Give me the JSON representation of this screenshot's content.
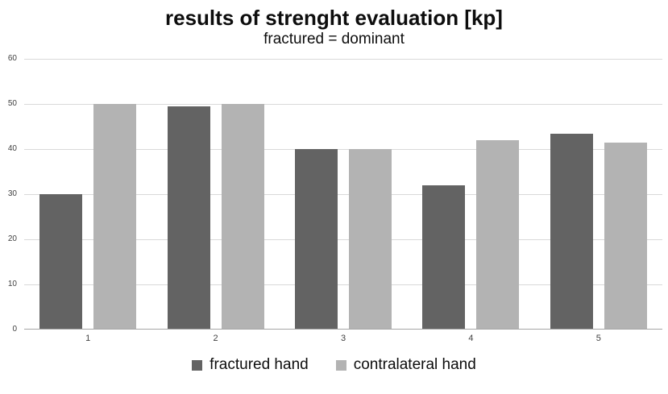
{
  "chart_data": {
    "type": "bar",
    "title": "results of strenght evaluation [kp]",
    "subtitle": "fractured = dominant",
    "categories": [
      "1",
      "2",
      "3",
      "4",
      "5"
    ],
    "series": [
      {
        "name": "fractured hand",
        "color": "#636363",
        "values": [
          30,
          49.5,
          40,
          32,
          43.5
        ]
      },
      {
        "name": "contralateral hand",
        "color": "#b3b3b3",
        "values": [
          50,
          50,
          40,
          42,
          41.5
        ]
      }
    ],
    "xlabel": "",
    "ylabel": "",
    "ylim": [
      0,
      60
    ],
    "yticks": [
      0,
      10,
      20,
      30,
      40,
      50,
      60
    ],
    "grid": true,
    "legend_position": "bottom",
    "colors": {
      "gridline": "#d9d9d9",
      "axis_line": "#a6a6a6",
      "tick_label": "#404040",
      "title_text": "#0d0d0d",
      "background": "#ffffff"
    }
  }
}
